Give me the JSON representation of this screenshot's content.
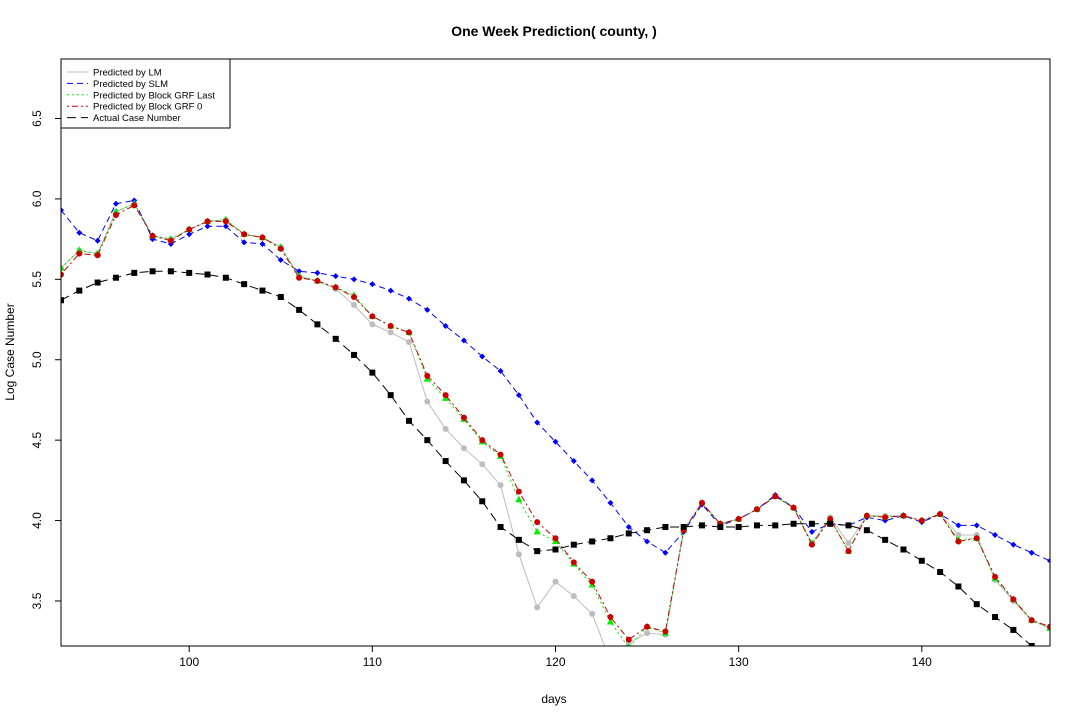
{
  "chart_data": {
    "type": "line",
    "title": "One Week Prediction( county, )",
    "xlabel": "days",
    "ylabel": "Log Case Number",
    "xlim": [
      93,
      147
    ],
    "ylim": [
      3.22,
      6.87
    ],
    "xticks": [
      100,
      110,
      120,
      130,
      140
    ],
    "yticks": [
      3.5,
      4.0,
      4.5,
      5.0,
      5.5,
      6.0,
      6.5
    ],
    "grid": false,
    "legend_position": "top-left",
    "x": [
      93,
      94,
      95,
      96,
      97,
      98,
      99,
      100,
      101,
      102,
      103,
      104,
      105,
      106,
      107,
      108,
      109,
      110,
      111,
      112,
      113,
      114,
      115,
      116,
      117,
      118,
      119,
      120,
      121,
      122,
      123,
      124,
      125,
      126,
      127,
      128,
      129,
      130,
      131,
      132,
      133,
      134,
      135,
      136,
      137,
      138,
      139,
      140,
      141,
      142,
      143,
      144,
      145,
      146,
      147
    ],
    "series": [
      {
        "name": "Predicted by LM",
        "color": "#bdbdbd",
        "line": "solid",
        "marker": "circle",
        "values": [
          5.57,
          5.68,
          5.66,
          5.92,
          5.97,
          5.77,
          5.75,
          5.81,
          5.86,
          5.87,
          5.78,
          5.76,
          5.7,
          5.52,
          5.49,
          5.44,
          5.34,
          5.22,
          5.17,
          5.11,
          4.74,
          4.57,
          4.45,
          4.35,
          4.22,
          3.79,
          3.46,
          3.62,
          3.53,
          3.42,
          3.13,
          3.24,
          3.3,
          3.29,
          3.94,
          4.11,
          3.98,
          4.01,
          4.07,
          4.15,
          4.08,
          3.86,
          4.02,
          3.86,
          4.03,
          4.03,
          4.03,
          4.0,
          4.04,
          3.91,
          3.91,
          3.63,
          3.5,
          3.38,
          3.33
        ]
      },
      {
        "name": "Predicted by SLM",
        "color": "#0000ff",
        "line": "dashed",
        "marker": "diamond",
        "values": [
          5.93,
          5.79,
          5.74,
          5.97,
          5.99,
          5.75,
          5.72,
          5.78,
          5.83,
          5.83,
          5.73,
          5.72,
          5.62,
          5.55,
          5.54,
          5.52,
          5.5,
          5.47,
          5.43,
          5.38,
          5.31,
          5.21,
          5.12,
          5.02,
          4.93,
          4.78,
          4.61,
          4.49,
          4.37,
          4.25,
          4.11,
          3.96,
          3.87,
          3.8,
          3.93,
          4.1,
          3.97,
          4.01,
          4.07,
          4.16,
          4.08,
          3.93,
          3.98,
          3.97,
          4.02,
          4.0,
          4.03,
          3.99,
          4.04,
          3.97,
          3.97,
          3.91,
          3.85,
          3.8,
          3.75
        ]
      },
      {
        "name": "Predicted by Block GRF Last",
        "color": "#00ee00",
        "line": "dotted",
        "marker": "triangle",
        "values": [
          5.57,
          5.68,
          5.66,
          5.92,
          5.97,
          5.77,
          5.75,
          5.81,
          5.86,
          5.87,
          5.78,
          5.76,
          5.7,
          5.52,
          5.49,
          5.45,
          5.4,
          5.27,
          5.21,
          5.17,
          4.88,
          4.76,
          4.63,
          4.49,
          4.4,
          4.13,
          3.93,
          3.87,
          3.73,
          3.6,
          3.37,
          3.21,
          3.34,
          3.3,
          3.94,
          4.11,
          3.98,
          4.01,
          4.07,
          4.15,
          4.08,
          3.86,
          4.01,
          3.81,
          4.03,
          4.02,
          4.03,
          4.0,
          4.04,
          3.88,
          3.89,
          3.64,
          3.51,
          3.38,
          3.33
        ]
      },
      {
        "name": "Predicted by Block GRF 0",
        "color": "#cc0000",
        "line": "dotdash",
        "marker": "circle",
        "values": [
          5.53,
          5.66,
          5.65,
          5.9,
          5.96,
          5.77,
          5.74,
          5.81,
          5.86,
          5.86,
          5.78,
          5.76,
          5.69,
          5.51,
          5.49,
          5.45,
          5.39,
          5.27,
          5.21,
          5.17,
          4.9,
          4.78,
          4.64,
          4.5,
          4.41,
          4.18,
          3.99,
          3.89,
          3.74,
          3.62,
          3.4,
          3.26,
          3.34,
          3.31,
          3.94,
          4.11,
          3.98,
          4.01,
          4.07,
          4.15,
          4.08,
          3.85,
          4.01,
          3.81,
          4.03,
          4.02,
          4.03,
          4.0,
          4.04,
          3.87,
          3.89,
          3.65,
          3.51,
          3.38,
          3.34
        ]
      },
      {
        "name": "Actual Case Number",
        "color": "#000000",
        "line": "longdash",
        "marker": "square",
        "values": [
          5.37,
          5.43,
          5.48,
          5.51,
          5.54,
          5.55,
          5.55,
          5.54,
          5.53,
          5.51,
          5.47,
          5.43,
          5.39,
          5.31,
          5.22,
          5.13,
          5.03,
          4.92,
          4.78,
          4.62,
          4.5,
          4.37,
          4.25,
          4.12,
          3.96,
          3.88,
          3.81,
          3.82,
          3.85,
          3.87,
          3.89,
          3.92,
          3.94,
          3.96,
          3.96,
          3.97,
          3.96,
          3.96,
          3.97,
          3.97,
          3.98,
          3.98,
          3.98,
          3.97,
          3.94,
          3.88,
          3.82,
          3.75,
          3.68,
          3.59,
          3.48,
          3.4,
          3.32,
          3.22,
          3.13
        ]
      }
    ]
  }
}
